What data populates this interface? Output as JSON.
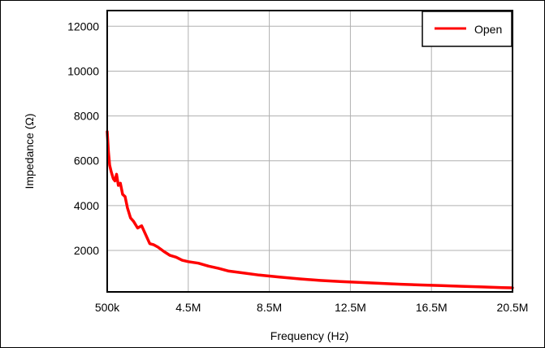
{
  "chart_data": {
    "type": "line",
    "title": "",
    "xlabel": "Frequency (Hz)",
    "ylabel": "Impedance (Ω)",
    "xlim": [
      500000,
      20500000
    ],
    "ylim": [
      150,
      12700
    ],
    "x_ticks": [
      500000,
      4500000,
      8500000,
      12500000,
      16500000,
      20500000
    ],
    "x_tick_labels": [
      "500k",
      "4.5M",
      "8.5M",
      "12.5M",
      "16.5M",
      "20.5M"
    ],
    "y_ticks": [
      2000,
      4000,
      6000,
      8000,
      10000,
      12000
    ],
    "y_tick_labels": [
      "2000",
      "4000",
      "6000",
      "8000",
      "10000",
      "12000"
    ],
    "grid": true,
    "legend": "top-right",
    "series": [
      {
        "name": "Open",
        "color": "#ff0000",
        "x": [
          500000,
          560000,
          620000,
          700000,
          800000,
          880000,
          960000,
          1050000,
          1150000,
          1260000,
          1380000,
          1500000,
          1650000,
          1800000,
          2000000,
          2200000,
          2400000,
          2600000,
          2800000,
          3000000,
          3300000,
          3600000,
          3900000,
          4200000,
          4500000,
          5000000,
          5500000,
          6000000,
          6500000,
          7000000,
          8000000,
          9000000,
          10000000,
          11000000,
          12000000,
          13000000,
          14000000,
          15000000,
          16000000,
          17000000,
          18000000,
          19000000,
          20000000,
          20500000
        ],
        "y": [
          7300,
          6400,
          5800,
          5500,
          5200,
          5100,
          5400,
          4900,
          5000,
          4500,
          4400,
          3900,
          3450,
          3300,
          3000,
          3100,
          2700,
          2300,
          2250,
          2150,
          1950,
          1780,
          1700,
          1560,
          1500,
          1430,
          1300,
          1200,
          1080,
          1020,
          900,
          810,
          730,
          660,
          610,
          570,
          530,
          490,
          460,
          430,
          400,
          370,
          340,
          330
        ]
      }
    ]
  }
}
